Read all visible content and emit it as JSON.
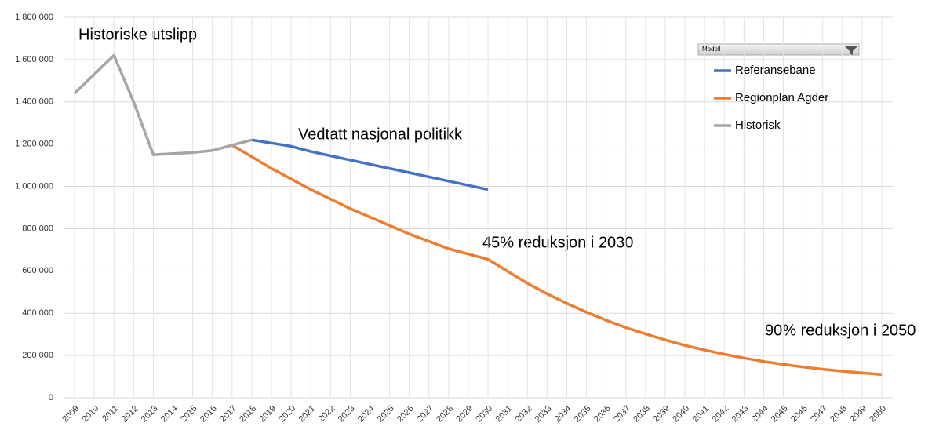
{
  "chart_data": {
    "type": "line",
    "categories": [
      "2009",
      "2010",
      "2011",
      "2012",
      "2013",
      "2014",
      "2015",
      "2016",
      "2017",
      "2018",
      "2019",
      "2020",
      "2021",
      "2022",
      "2023",
      "2024",
      "2025",
      "2026",
      "2027",
      "2028",
      "2029",
      "2030",
      "2031",
      "2032",
      "2033",
      "2034",
      "2035",
      "2036",
      "2037",
      "2038",
      "2039",
      "2040",
      "2041",
      "2042",
      "2043",
      "2044",
      "2045",
      "2046",
      "2047",
      "2048",
      "2049",
      "2050"
    ],
    "series": [
      {
        "name": "Referansebane",
        "color": "#4472c4",
        "values": [
          null,
          null,
          null,
          null,
          null,
          null,
          null,
          null,
          null,
          1220000,
          1205000,
          1190000,
          1165000,
          1145000,
          1125000,
          1105000,
          1085000,
          1065000,
          1045000,
          1025000,
          1005000,
          985000,
          null,
          null,
          null,
          null,
          null,
          null,
          null,
          null,
          null,
          null,
          null,
          null,
          null,
          null,
          null,
          null,
          null,
          null,
          null,
          null
        ]
      },
      {
        "name": "Regionplan Agder",
        "color": "#ed7d31",
        "values": [
          null,
          null,
          null,
          null,
          null,
          null,
          null,
          null,
          1195000,
          1140000,
          1085000,
          1035000,
          985000,
          940000,
          895000,
          855000,
          815000,
          775000,
          740000,
          705000,
          680000,
          655000,
          598000,
          542000,
          492000,
          447000,
          405000,
          367000,
          332000,
          302000,
          274000,
          248000,
          226000,
          206000,
          188000,
          172000,
          158000,
          146000,
          135000,
          126000,
          118000,
          110000
        ]
      },
      {
        "name": "Historisk",
        "color": "#a5a5a5",
        "values": [
          1440000,
          1530000,
          1620000,
          1400000,
          1150000,
          1155000,
          1160000,
          1170000,
          1195000,
          1220000,
          null,
          null,
          null,
          null,
          null,
          null,
          null,
          null,
          null,
          null,
          null,
          null,
          null,
          null,
          null,
          null,
          null,
          null,
          null,
          null,
          null,
          null,
          null,
          null,
          null,
          null,
          null,
          null,
          null,
          null,
          null,
          null
        ]
      }
    ],
    "ylim": [
      0,
      1800000
    ],
    "yticks": [
      0,
      {
        "value": 200000,
        "label": "200 000"
      },
      {
        "value": 400000,
        "label": "400 000"
      },
      {
        "value": 600000,
        "label": "600 000"
      },
      {
        "value": 800000,
        "label": "800 000"
      },
      {
        "value": 1000000,
        "label": "1 000 000"
      },
      {
        "value": 1200000,
        "label": "1 200 000"
      },
      {
        "value": 1400000,
        "label": "1 400 000"
      },
      {
        "value": 1600000,
        "label": "1 600 000"
      },
      {
        "value": 1800000,
        "label": "1 800 000"
      }
    ],
    "grid": true,
    "legend_title": "Modell",
    "legend": "top-right",
    "annotations": [
      "Historiske utslipp",
      "Vedtatt nasjonal politikk",
      "45% reduksjon i 2030",
      "90% reduksjon i 2050"
    ]
  }
}
